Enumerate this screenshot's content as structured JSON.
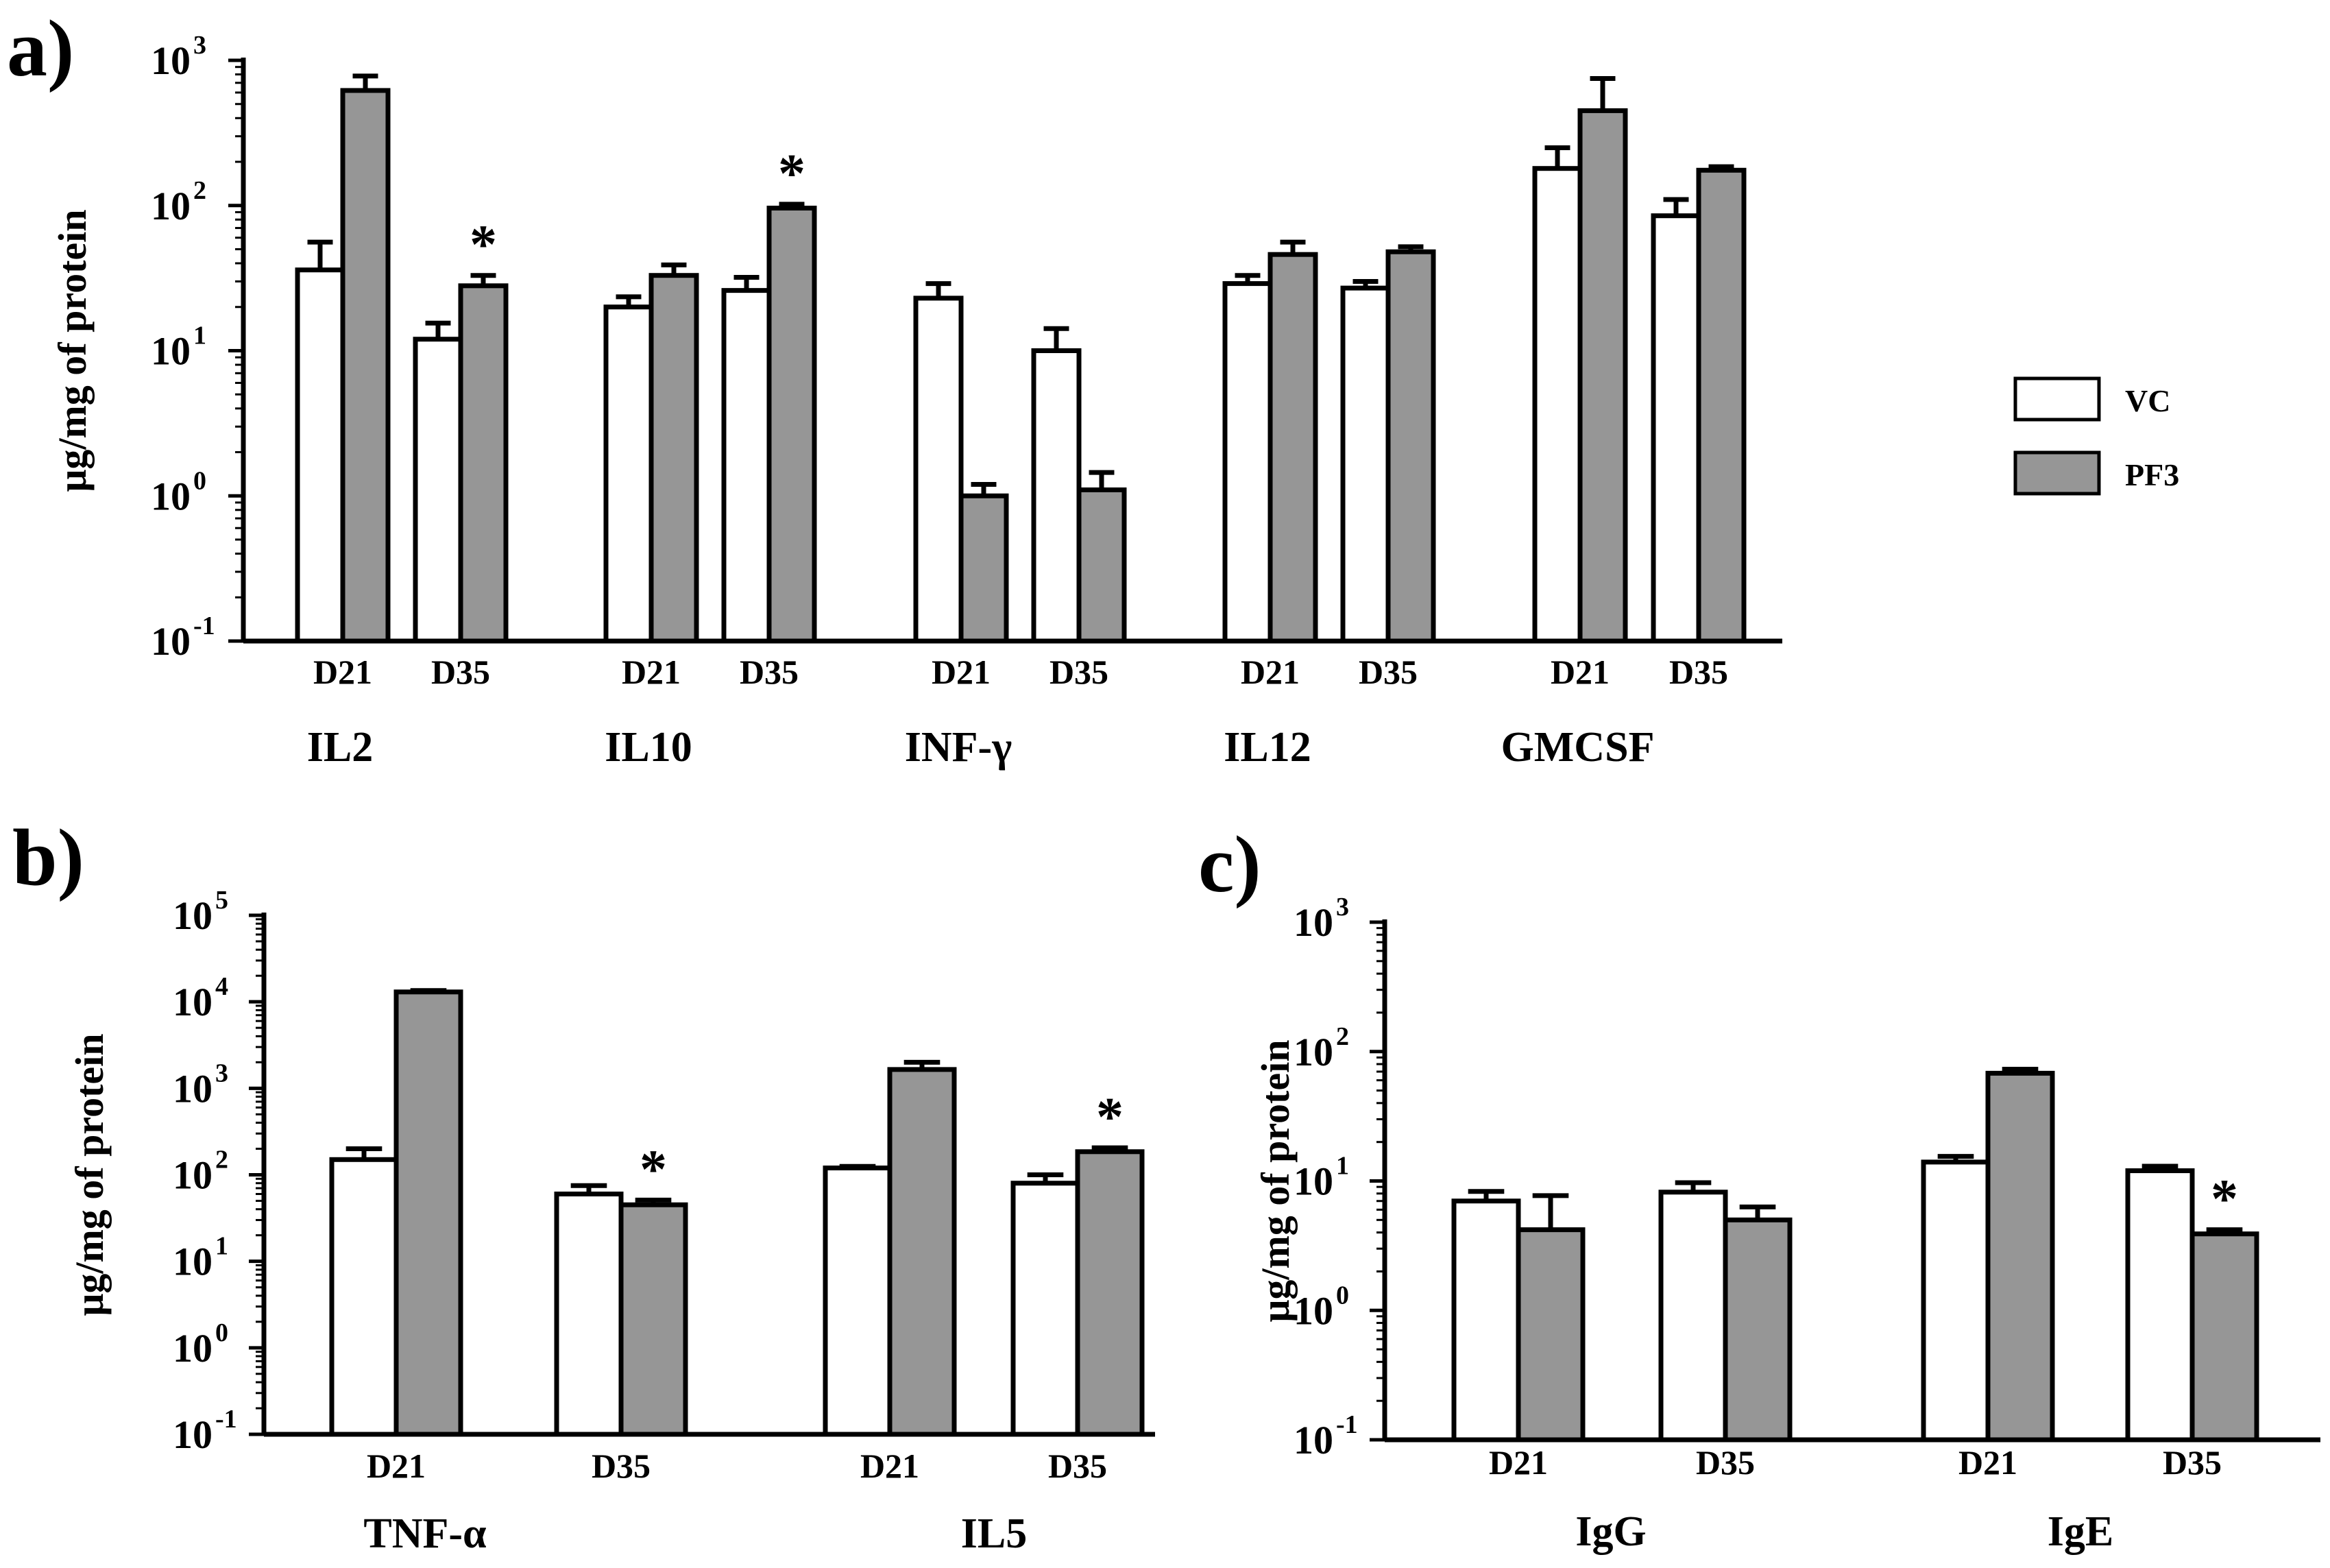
{
  "colors": {
    "vc": "#ffffff",
    "pf3": "#969696",
    "axis": "#000000"
  },
  "legend": [
    {
      "key": "vc",
      "label": "VC"
    },
    {
      "key": "pf3",
      "label": "PF3"
    }
  ],
  "chart_data": [
    {
      "id": "a",
      "panel_label": "a)",
      "type": "bar",
      "scale": "log",
      "ylabel": "μg/mg of  protein",
      "ylim": [
        0.1,
        1000
      ],
      "ytick_exponents": [
        3,
        2,
        1,
        0,
        -1
      ],
      "groups": [
        {
          "name": "IL2",
          "timepoints": [
            {
              "label": "D21",
              "vc": 36,
              "vc_err": 20,
              "pf3": 620,
              "pf3_err": 160,
              "star": false
            },
            {
              "label": "D35",
              "vc": 12,
              "vc_err": 3.5,
              "pf3": 28,
              "pf3_err": 5,
              "star": true
            }
          ]
        },
        {
          "name": "IL10",
          "timepoints": [
            {
              "label": "D21",
              "vc": 20,
              "vc_err": 3.5,
              "pf3": 33,
              "pf3_err": 6,
              "star": false
            },
            {
              "label": "D35",
              "vc": 26,
              "vc_err": 6,
              "pf3": 96,
              "pf3_err": 6,
              "star": true
            }
          ]
        },
        {
          "name": "INF-γ",
          "timepoints": [
            {
              "label": "D21",
              "vc": 23,
              "vc_err": 6,
              "pf3": 1.0,
              "pf3_err": 0.2,
              "star": false
            },
            {
              "label": "D35",
              "vc": 10,
              "vc_err": 4.2,
              "pf3": 1.1,
              "pf3_err": 0.35,
              "star": false
            }
          ]
        },
        {
          "name": "IL12",
          "timepoints": [
            {
              "label": "D21",
              "vc": 29,
              "vc_err": 4,
              "pf3": 46,
              "pf3_err": 10,
              "star": false
            },
            {
              "label": "D35",
              "vc": 27,
              "vc_err": 3,
              "pf3": 48,
              "pf3_err": 4,
              "star": false
            }
          ]
        },
        {
          "name": "GMCSF",
          "timepoints": [
            {
              "label": "D21",
              "vc": 180,
              "vc_err": 70,
              "pf3": 450,
              "pf3_err": 300,
              "star": false
            },
            {
              "label": "D35",
              "vc": 85,
              "vc_err": 25,
              "pf3": 175,
              "pf3_err": 10,
              "star": false
            }
          ]
        }
      ]
    },
    {
      "id": "b",
      "panel_label": "b)",
      "type": "bar",
      "scale": "log",
      "ylabel": "μg/mg of  protein",
      "ylim": [
        0.1,
        100000
      ],
      "ytick_exponents": [
        5,
        4,
        3,
        2,
        1,
        0,
        -1
      ],
      "groups": [
        {
          "name": "TNF-α",
          "timepoints": [
            {
              "label": "D21",
              "vc": 150,
              "vc_err": 50,
              "pf3": 13000,
              "pf3_err": 500,
              "star": false
            },
            {
              "label": "D35",
              "vc": 60,
              "vc_err": 15,
              "pf3": 45,
              "pf3_err": 6,
              "star": true
            }
          ]
        },
        {
          "name": "IL5",
          "timepoints": [
            {
              "label": "D21",
              "vc": 120,
              "vc_err": 5,
              "pf3": 1650,
              "pf3_err": 350,
              "star": false
            },
            {
              "label": "D35",
              "vc": 80,
              "vc_err": 20,
              "pf3": 185,
              "pf3_err": 20,
              "star": true
            }
          ]
        }
      ]
    },
    {
      "id": "c",
      "panel_label": "c)",
      "type": "bar",
      "scale": "log",
      "ylabel": "μg/mg of  protein",
      "ylim": [
        0.1,
        1000
      ],
      "ytick_exponents": [
        3,
        2,
        1,
        0,
        -1
      ],
      "groups": [
        {
          "name": "IgG",
          "timepoints": [
            {
              "label": "D21",
              "vc": 7,
              "vc_err": 1.3,
              "pf3": 4.2,
              "pf3_err": 3.5,
              "star": false
            },
            {
              "label": "D35",
              "vc": 8.2,
              "vc_err": 1.5,
              "pf3": 5,
              "pf3_err": 1.3,
              "star": false
            }
          ]
        },
        {
          "name": "IgE",
          "timepoints": [
            {
              "label": "D21",
              "vc": 14,
              "vc_err": 1.5,
              "pf3": 68,
              "pf3_err": 5,
              "star": false
            },
            {
              "label": "D35",
              "vc": 12,
              "vc_err": 1,
              "pf3": 3.9,
              "pf3_err": 0.3,
              "star": true
            }
          ]
        }
      ]
    }
  ]
}
